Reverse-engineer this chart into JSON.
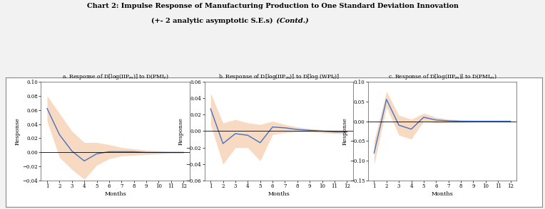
{
  "title_line1": "Chart 2: Impulse Response of Manufacturing Production to One Standard Deviation Innovation",
  "title_line2_normal": "(+- 2 analytic asymptotic S.E.s)",
  "title_line2_italic": " (Contd.)",
  "subplot_titles": [
    "a. Response of D[log(IIP$_{m}$)] to D(PMI$_{t}$)",
    "b. Response of D[log(IIP$_{m}$)] to D[log (WPI$_{t}$)]",
    "c. Response of D[log(IIP$_{m}$)] to D(PMI$_{m}$)"
  ],
  "months": [
    1,
    2,
    3,
    4,
    5,
    6,
    7,
    8,
    9,
    10,
    11,
    12
  ],
  "panel_a_irf": [
    0.062,
    0.025,
    0.002,
    -0.012,
    -0.002,
    0.001,
    0.001,
    0.001,
    0.0,
    0.0,
    0.0,
    0.0
  ],
  "panel_a_upper": [
    0.08,
    0.055,
    0.03,
    0.014,
    0.014,
    0.011,
    0.007,
    0.005,
    0.003,
    0.002,
    0.001,
    0.001
  ],
  "panel_a_lower": [
    0.044,
    -0.007,
    -0.024,
    -0.038,
    -0.018,
    -0.009,
    -0.005,
    -0.004,
    -0.003,
    -0.002,
    -0.001,
    -0.001
  ],
  "panel_a_ylim": [
    -0.04,
    0.1
  ],
  "panel_a_yticks": [
    -0.04,
    -0.02,
    0.0,
    0.02,
    0.04,
    0.06,
    0.08,
    0.1
  ],
  "panel_b_irf": [
    0.027,
    -0.015,
    -0.003,
    -0.005,
    -0.014,
    0.005,
    0.004,
    0.002,
    0.001,
    0.0,
    -0.001,
    -0.001
  ],
  "panel_b_upper": [
    0.046,
    0.01,
    0.014,
    0.01,
    0.008,
    0.012,
    0.008,
    0.005,
    0.003,
    0.002,
    0.001,
    0.001
  ],
  "panel_b_lower": [
    0.008,
    -0.04,
    -0.02,
    -0.02,
    -0.036,
    -0.004,
    -0.002,
    -0.001,
    -0.001,
    -0.002,
    -0.003,
    -0.003
  ],
  "panel_b_ylim": [
    -0.06,
    0.06
  ],
  "panel_b_yticks": [
    -0.06,
    -0.04,
    -0.02,
    0.0,
    0.02,
    0.04,
    0.06
  ],
  "panel_c_irf": [
    -0.08,
    0.055,
    -0.01,
    -0.02,
    0.01,
    0.003,
    0.001,
    0.0,
    0.0,
    0.0,
    0.0,
    0.0
  ],
  "panel_c_upper": [
    -0.05,
    0.075,
    0.015,
    0.005,
    0.02,
    0.01,
    0.005,
    0.003,
    0.002,
    0.001,
    0.001,
    0.001
  ],
  "panel_c_lower": [
    -0.11,
    0.035,
    -0.035,
    -0.045,
    -0.0,
    -0.004,
    -0.003,
    -0.003,
    -0.002,
    -0.001,
    -0.001,
    -0.001
  ],
  "panel_c_ylim": [
    -0.15,
    0.1
  ],
  "panel_c_yticks": [
    -0.15,
    -0.1,
    -0.05,
    0.0,
    0.05,
    0.1
  ],
  "line_color": "#4472C4",
  "fill_color": "#F5C6A0",
  "fill_alpha": 0.65,
  "line_width": 1.0,
  "panel_bg": "#FFFFFF",
  "figure_bg": "#F2F2F2",
  "outer_box_bg": "#FFFFFF"
}
